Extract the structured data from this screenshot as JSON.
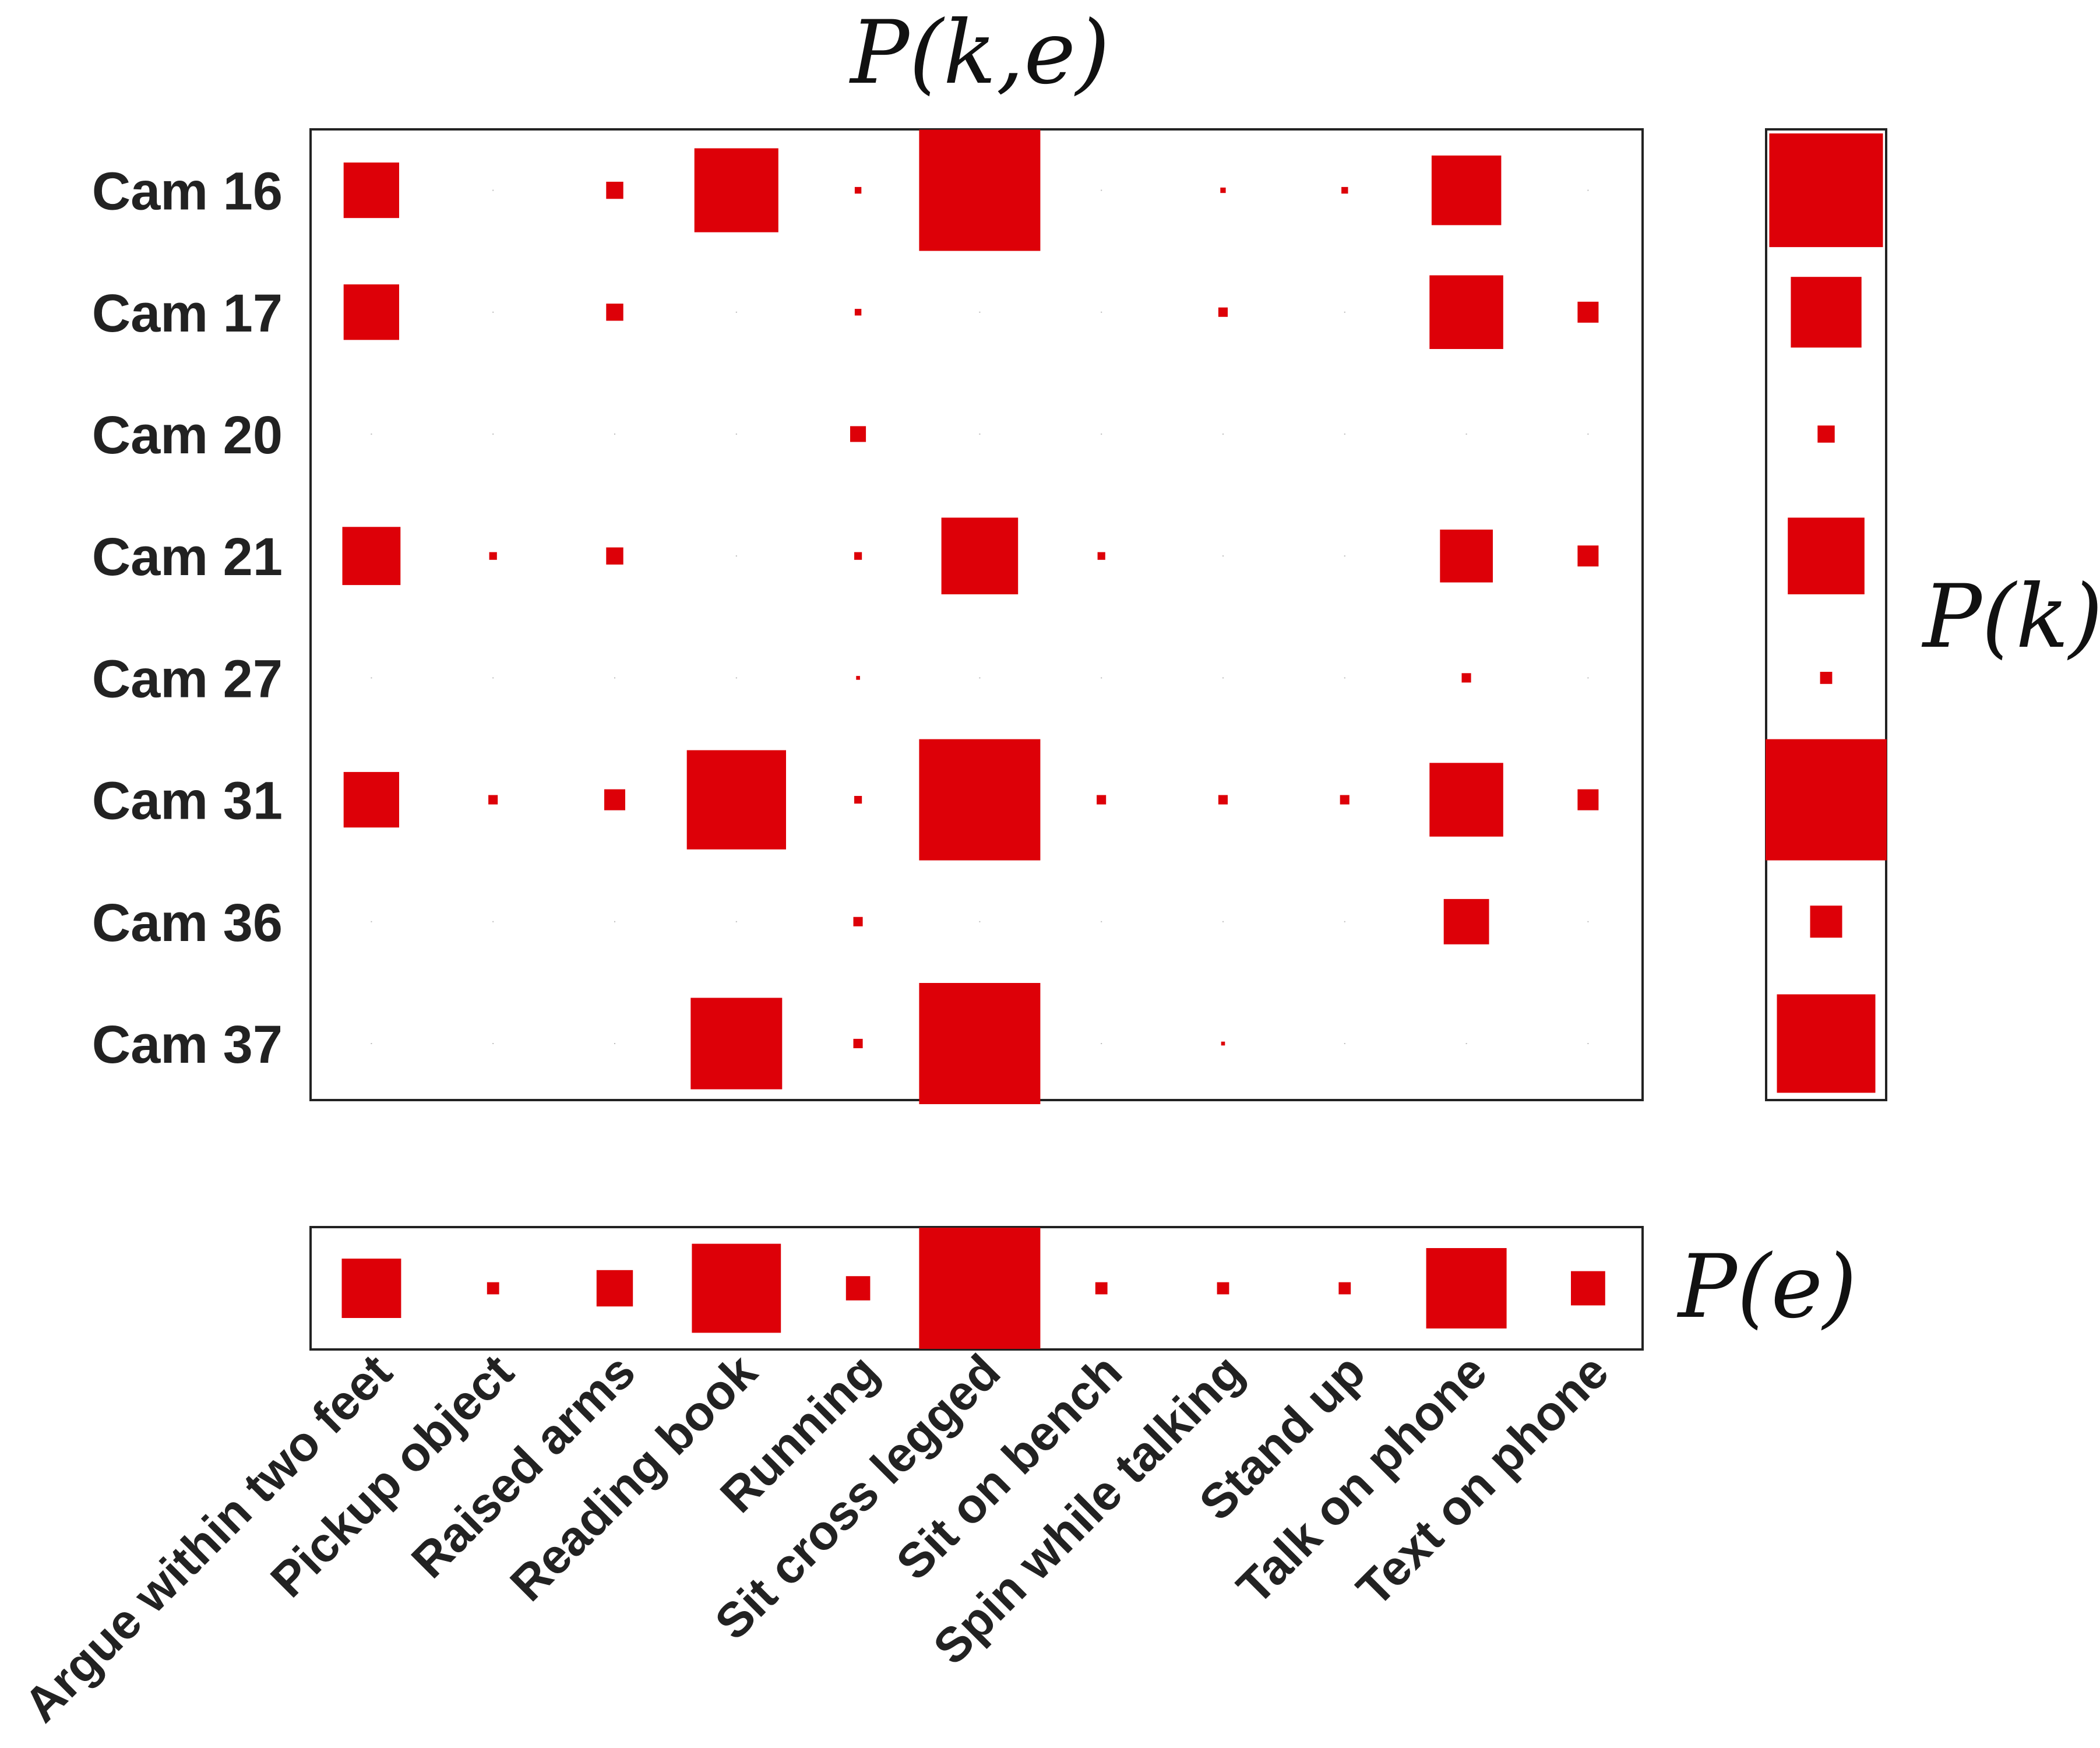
{
  "chart_data": {
    "type": "heatmap",
    "titles": {
      "joint": "P(k,e)",
      "marginal_k": "P(k)",
      "marginal_e": "P(e)"
    },
    "rows": [
      "Cam 16",
      "Cam 17",
      "Cam 20",
      "Cam 21",
      "Cam 27",
      "Cam 31",
      "Cam 36",
      "Cam 37"
    ],
    "columns": [
      "Argue within two feet",
      "Pickup object",
      "Raised arms",
      "Reading book",
      "Running",
      "Sit cross legged",
      "Sit on bench",
      "Spin while talking",
      "Stand up",
      "Talk on phone",
      "Text on phone"
    ],
    "joint_values": [
      [
        0.21,
        0.0,
        0.02,
        0.48,
        0.003,
        1.0,
        0.0,
        0.002,
        0.003,
        0.33,
        0.0
      ],
      [
        0.21,
        0.0,
        0.02,
        0.0,
        0.003,
        0.0,
        0.0,
        0.006,
        0.0,
        0.37,
        0.03
      ],
      [
        0.0,
        0.0,
        0.0,
        0.0,
        0.017,
        0.0,
        0.0,
        0.0,
        0.0,
        0.0,
        0.0
      ],
      [
        0.23,
        0.004,
        0.02,
        0.0,
        0.004,
        0.4,
        0.004,
        0.0,
        0.0,
        0.19,
        0.03
      ],
      [
        0.0,
        0.0,
        0.0,
        0.0,
        0.001,
        0.0,
        0.0,
        0.0,
        0.0,
        0.006,
        0.0
      ],
      [
        0.21,
        0.006,
        0.03,
        0.67,
        0.004,
        1.0,
        0.006,
        0.006,
        0.006,
        0.37,
        0.03
      ],
      [
        0.0,
        0.0,
        0.0,
        0.0,
        0.006,
        0.0,
        0.0,
        0.0,
        0.0,
        0.14,
        0.0
      ],
      [
        0.0,
        0.0,
        0.0,
        0.57,
        0.006,
        1.0,
        0.0,
        0.001,
        0.0,
        0.0,
        0.0
      ]
    ],
    "marginal_k_values": [
      0.88,
      0.34,
      0.02,
      0.4,
      0.01,
      1.0,
      0.07,
      0.66
    ],
    "marginal_e_values": [
      0.24,
      0.01,
      0.09,
      0.54,
      0.04,
      1.0,
      0.01,
      0.01,
      0.01,
      0.44,
      0.08
    ],
    "colors": {
      "mark": "#dd0008",
      "background": "#ffffff",
      "frame": "#222222"
    },
    "grid": false,
    "encoding": "square area proportional to probability"
  }
}
